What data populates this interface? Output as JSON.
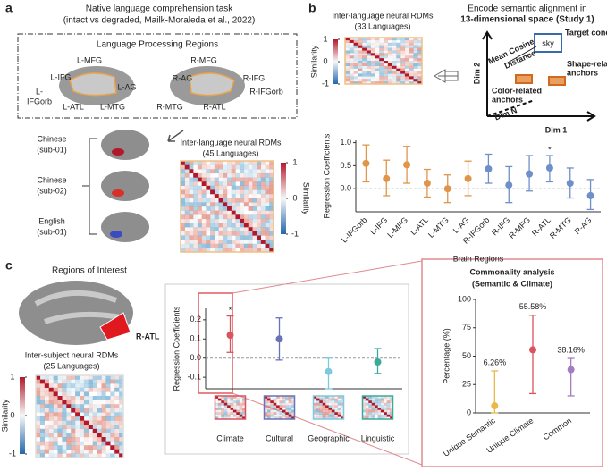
{
  "panel_a": {
    "label": "a",
    "title": "Native language comprehension task",
    "subtitle": "(intact vs degraded, Mailk-Moraleda et al., 2022)",
    "box_title": "Language Processing Regions",
    "left_regions": [
      "L-MFG",
      "L-IFG",
      "L-AG",
      "L-ATL",
      "L-MTG"
    ],
    "left_ifgorb_lines": [
      "L-",
      "IFGorb"
    ],
    "right_regions": [
      "R-MFG",
      "R-AG",
      "R-IFG",
      "R-IFGorb",
      "R-MTG",
      "R-ATL"
    ],
    "subjects": [
      [
        "Chinese",
        "(sub-01)"
      ],
      [
        "Chinese",
        "(sub-02)"
      ],
      [
        "English",
        "(sub-01)"
      ]
    ],
    "rdm_title": "Inter-language neural RDMs",
    "rdm_subtitle": "(45 Languages)",
    "colorbar": {
      "label": "Similarity",
      "ticks": [
        1,
        0,
        -1
      ]
    }
  },
  "panel_b": {
    "label": "b",
    "rdm_title": "Inter-language neural RDMs",
    "rdm_subtitle": "(33 Languages)",
    "colorbar": {
      "label": "Similarity",
      "ticks": [
        1,
        0,
        -1
      ]
    },
    "diagram_title": "Encode semantic alignment in",
    "diagram_subtitle": "13-dimensional space (Study 1)",
    "target": "Target concept",
    "word": "sky",
    "distance_lines": [
      "Mean Cosine",
      "Distance"
    ],
    "shape_lines": [
      "Shape-related",
      "anchors"
    ],
    "color_lines": [
      "Color-related",
      "anchors"
    ],
    "axes": [
      "Dim 2",
      "Dim 1",
      "Dim N"
    ]
  },
  "panel_c": {
    "label": "c",
    "roi_title": "Regions of Interest",
    "roi": "R-ATL",
    "rdm_title": "Inter-subject neural RDMs",
    "rdm_subtitle": "(25 Languages)",
    "colorbar": {
      "label": "Similarity",
      "ticks": [
        1,
        0,
        -1
      ]
    },
    "box_title": "Commonality analysis",
    "box_subtitle": "(Semantic & Climate)"
  },
  "chart_data": [
    {
      "type": "errorbar",
      "xlabel": "Brain Regions",
      "ylabel": "Regression Coefficients",
      "categories": [
        "L-IFGorb",
        "L-IFG",
        "L-MFG",
        "L-ATL",
        "L-MTG",
        "L-AG",
        "R-IFGorb",
        "R-IFG",
        "R-MFG",
        "R-ATL",
        "R-MTG",
        "R-AG"
      ],
      "values": [
        0.55,
        0.22,
        0.52,
        0.12,
        0.0,
        0.22,
        0.43,
        0.08,
        0.32,
        0.45,
        0.12,
        -0.15
      ],
      "lower": [
        0.15,
        -0.15,
        0.12,
        -0.18,
        -0.3,
        -0.15,
        0.12,
        -0.3,
        -0.05,
        0.15,
        -0.2,
        -0.45
      ],
      "upper": [
        0.95,
        0.62,
        0.92,
        0.42,
        0.3,
        0.6,
        0.75,
        0.48,
        0.72,
        0.72,
        0.45,
        0.2
      ],
      "colors": [
        "#e0954a",
        "#e0954a",
        "#e0954a",
        "#e0954a",
        "#e0954a",
        "#e0954a",
        "#6f8fc9",
        "#6f8fc9",
        "#6f8fc9",
        "#6f8fc9",
        "#6f8fc9",
        "#6f8fc9"
      ],
      "significance": [
        null,
        null,
        null,
        null,
        null,
        null,
        null,
        null,
        null,
        "*",
        null,
        null
      ],
      "ylim": [
        -0.5,
        1.05
      ],
      "yticks": [
        {
          "value": 0,
          "label": "0.0"
        },
        0.5,
        {
          "value": 1,
          "label": "1.0"
        }
      ],
      "hline": 0
    },
    {
      "type": "errorbar",
      "ylabel": "Regression Coefficients",
      "categories": [
        "Climate",
        "Cultural",
        "Geographic",
        "Linguistic"
      ],
      "values": [
        0.12,
        0.1,
        -0.07,
        -0.02
      ],
      "lower": [
        0.03,
        -0.01,
        -0.16,
        -0.08
      ],
      "upper": [
        0.22,
        0.21,
        0.0,
        0.05
      ],
      "colors": [
        "#d9545e",
        "#6a72b8",
        "#7ec8e0",
        "#3aaa9a"
      ],
      "significance": [
        "*",
        null,
        null,
        null
      ],
      "ylim": [
        -0.16,
        0.26
      ],
      "yticks": [
        -0.1,
        {
          "value": 0,
          "label": "0.0"
        },
        0.1,
        0.2
      ],
      "hline": 0
    },
    {
      "type": "errorbar",
      "ylabel": "Percentage (%)",
      "categories": [
        "Unique Semantic",
        "Unique Climate",
        "Common"
      ],
      "values": [
        6.26,
        55.58,
        38.16
      ],
      "value_labels": [
        "6.26%",
        "55.58%",
        "38.16%"
      ],
      "lower": [
        0,
        17,
        15
      ],
      "upper": [
        37,
        86,
        48
      ],
      "colors": [
        "#e8b84a",
        "#d9545e",
        "#a47cc0"
      ],
      "ylim": [
        0,
        100
      ],
      "yticks": [
        0,
        25,
        50,
        75,
        100
      ]
    }
  ]
}
